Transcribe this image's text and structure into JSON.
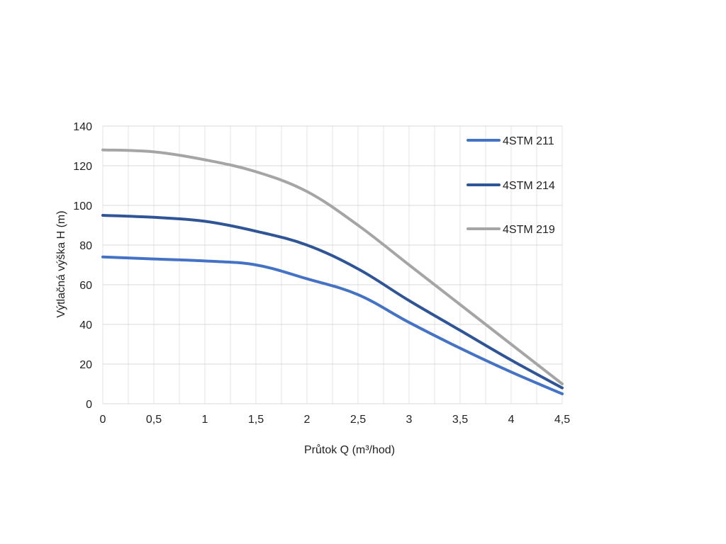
{
  "chart_data": {
    "type": "line",
    "title": "",
    "xlabel": "Průtok Q (m³/hod)",
    "ylabel": "Výtlačná výška H (m)",
    "xlim": [
      0,
      4.5
    ],
    "ylim": [
      0,
      140
    ],
    "x_ticks": [
      {
        "value": 0,
        "label": "0"
      },
      {
        "value": 0.5,
        "label": "0,5"
      },
      {
        "value": 1,
        "label": "1"
      },
      {
        "value": 1.5,
        "label": "1,5"
      },
      {
        "value": 2,
        "label": "2"
      },
      {
        "value": 2.5,
        "label": "2,5"
      },
      {
        "value": 3,
        "label": "3"
      },
      {
        "value": 3.5,
        "label": "3,5"
      },
      {
        "value": 4,
        "label": "4"
      },
      {
        "value": 4.5,
        "label": "4,5"
      }
    ],
    "y_ticks": [
      {
        "value": 0,
        "label": "0"
      },
      {
        "value": 20,
        "label": "20"
      },
      {
        "value": 40,
        "label": "40"
      },
      {
        "value": 60,
        "label": "60"
      },
      {
        "value": 80,
        "label": "80"
      },
      {
        "value": 100,
        "label": "100"
      },
      {
        "value": 120,
        "label": "120"
      },
      {
        "value": 140,
        "label": "140"
      }
    ],
    "grid": true,
    "legend_position": "top-right",
    "x": [
      0,
      0.5,
      1,
      1.5,
      2,
      2.5,
      3,
      3.5,
      4,
      4.5
    ],
    "series": [
      {
        "name": "4STM 211",
        "color": "#4472C4",
        "values": [
          74,
          73,
          72,
          70,
          63,
          55,
          41,
          28,
          16,
          5
        ]
      },
      {
        "name": "4STM 214",
        "color": "#2F5597",
        "values": [
          95,
          94,
          92,
          87,
          80,
          68,
          52,
          37,
          22,
          8
        ]
      },
      {
        "name": "4STM 219",
        "color": "#A5A5A5",
        "values": [
          128,
          127,
          123,
          117,
          107,
          90,
          70,
          50,
          30,
          10
        ]
      }
    ]
  }
}
